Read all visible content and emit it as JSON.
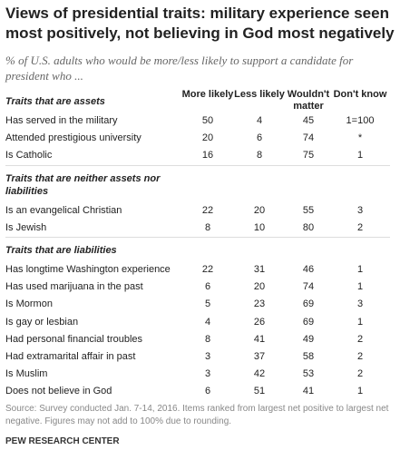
{
  "header": {
    "title": "Views of presidential traits: military experience seen most positively, not believing in God most negatively",
    "subtitle": "% of U.S. adults who would be more/less likely to support a candidate for president who ..."
  },
  "table": {
    "columns": [
      "More likely",
      "Less likely",
      "Wouldn't matter",
      "Don't know"
    ],
    "groups": [
      {
        "heading": "Traits that are assets",
        "rows": [
          [
            "Has served in the military",
            50,
            4,
            45,
            "1=100"
          ],
          [
            "Attended prestigious university",
            20,
            6,
            74,
            "*"
          ],
          [
            "Is Catholic",
            16,
            8,
            75,
            1
          ]
        ]
      },
      {
        "heading": "Traits that are neither assets nor liabilities",
        "rows": [
          [
            "Is an evangelical Christian",
            22,
            20,
            55,
            3
          ],
          [
            "Is Jewish",
            8,
            10,
            80,
            2
          ]
        ]
      },
      {
        "heading": "Traits that are liabilities",
        "rows": [
          [
            "Has longtime Washington experience",
            22,
            31,
            46,
            1
          ],
          [
            "Has used marijuana in the past",
            6,
            20,
            74,
            1
          ],
          [
            "Is Mormon",
            5,
            23,
            69,
            3
          ],
          [
            "Is gay or lesbian",
            4,
            26,
            69,
            1
          ],
          [
            "Had personal financial troubles",
            8,
            41,
            49,
            2
          ],
          [
            "Had extramarital affair in past",
            3,
            37,
            58,
            2
          ],
          [
            "Is Muslim",
            3,
            42,
            53,
            2
          ],
          [
            "Does not believe in God",
            6,
            51,
            41,
            1
          ]
        ]
      }
    ]
  },
  "footer": {
    "source": "Source: Survey conducted Jan. 7-14, 2016. Items ranked from largest net positive to largest net negative. Figures may not add to 100% due to rounding.",
    "credit": "PEW RESEARCH CENTER"
  }
}
